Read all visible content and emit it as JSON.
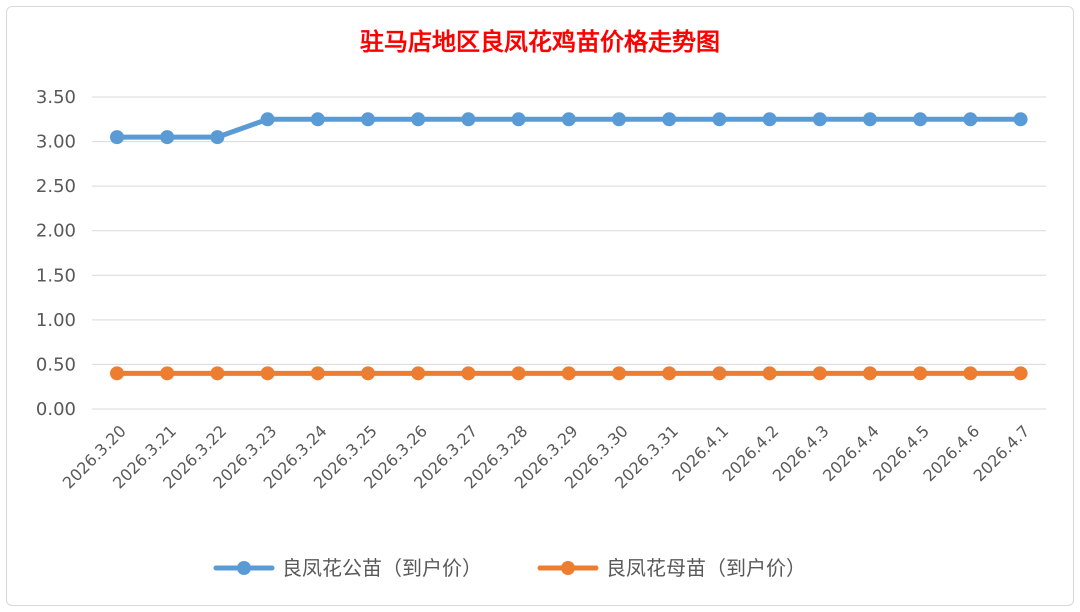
{
  "colors": {
    "title": "#ff0000",
    "grid": "#d9d9d9",
    "series_male": "#5b9bd5",
    "series_female": "#ed7d31"
  },
  "chart_data": {
    "type": "line",
    "title": "驻马店地区良凤花鸡苗价格走势图",
    "xlabel": "",
    "ylabel": "",
    "ylim": [
      0,
      3.5
    ],
    "yticks": [
      "0.00",
      "0.50",
      "1.00",
      "1.50",
      "2.00",
      "2.50",
      "3.00",
      "3.50"
    ],
    "grid": "horizontal",
    "legend_position": "bottom",
    "categories": [
      "2026.3.20",
      "2026.3.21",
      "2026.3.22",
      "2026.3.23",
      "2026.3.24",
      "2026.3.25",
      "2026.3.26",
      "2026.3.27",
      "2026.3.28",
      "2026.3.29",
      "2026.3.30",
      "2026.3.31",
      "2026.4.1",
      "2026.4.2",
      "2026.4.3",
      "2026.4.4",
      "2026.4.5",
      "2026.4.6",
      "2026.4.7"
    ],
    "series": [
      {
        "name": "良凤花公苗（到户价）",
        "values": [
          3.05,
          3.05,
          3.05,
          3.25,
          3.25,
          3.25,
          3.25,
          3.25,
          3.25,
          3.25,
          3.25,
          3.25,
          3.25,
          3.25,
          3.25,
          3.25,
          3.25,
          3.25,
          3.25
        ]
      },
      {
        "name": "良凤花母苗（到户价）",
        "values": [
          0.4,
          0.4,
          0.4,
          0.4,
          0.4,
          0.4,
          0.4,
          0.4,
          0.4,
          0.4,
          0.4,
          0.4,
          0.4,
          0.4,
          0.4,
          0.4,
          0.4,
          0.4,
          0.4
        ]
      }
    ]
  }
}
